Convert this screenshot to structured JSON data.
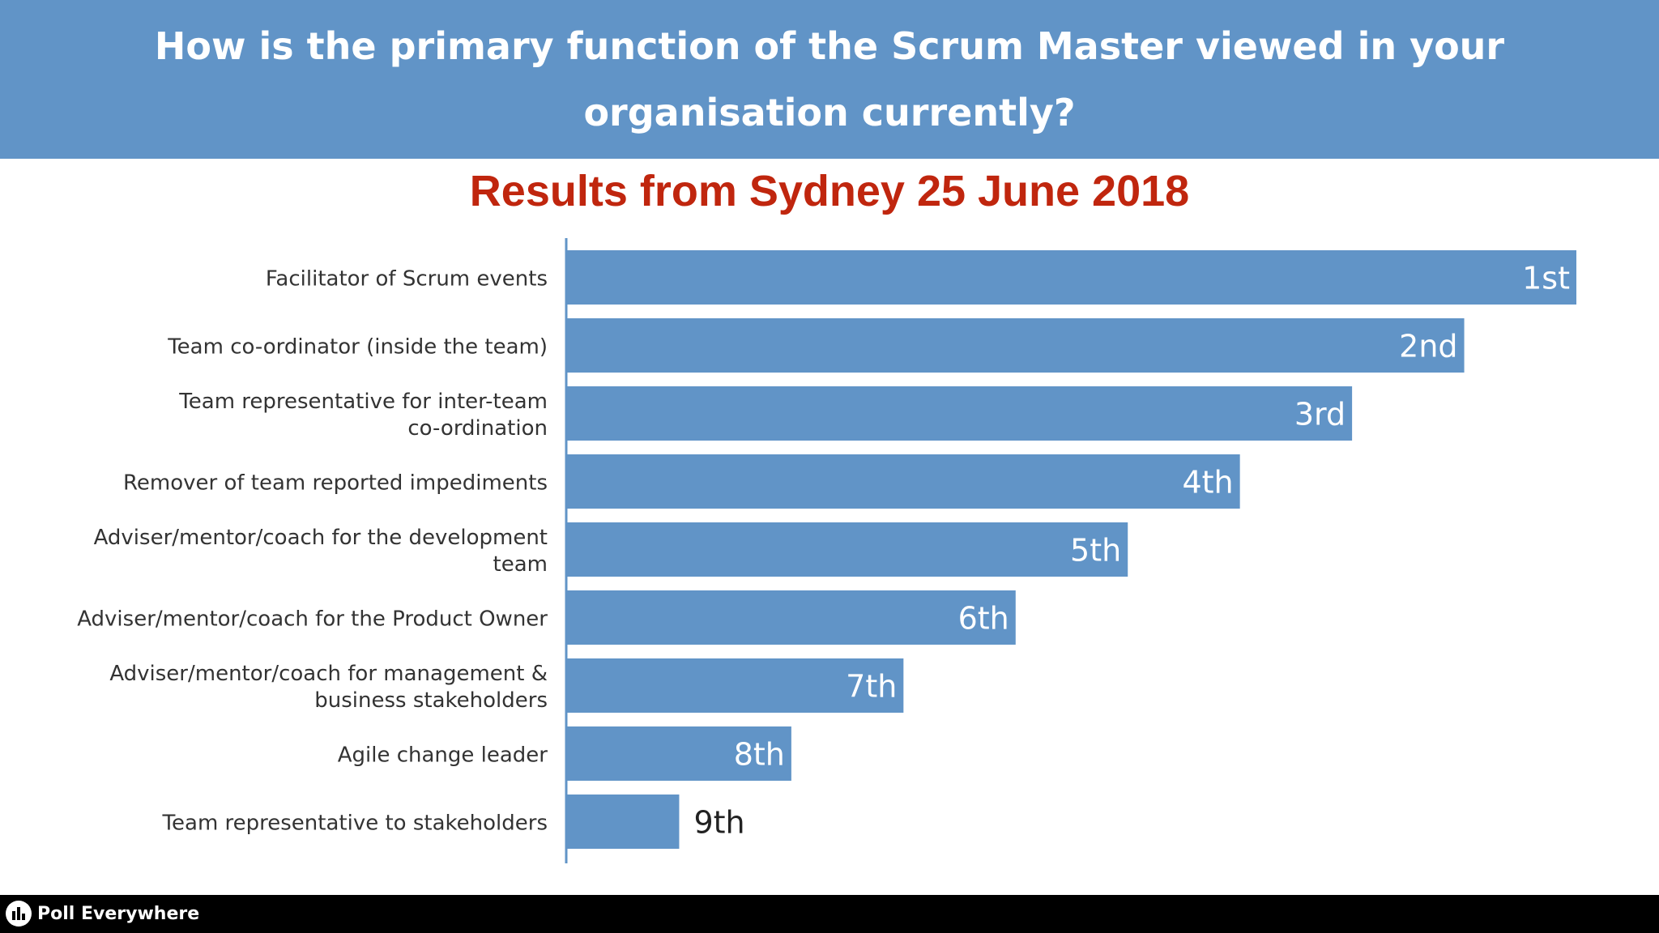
{
  "header": {
    "question": "How is the primary function of the Scrum Master viewed in your organisation currently?"
  },
  "subtitle": "Results from Sydney 25 June 2018",
  "footer": {
    "brand": "Poll Everywhere"
  },
  "colors": {
    "header_bg": "#6194c7",
    "bar": "#6194c7",
    "subtitle": "#c0260e",
    "footer_bg": "#000000"
  },
  "chart_data": {
    "type": "bar",
    "orientation": "horizontal",
    "title": "How is the primary function of the Scrum Master viewed in your organisation currently?",
    "subtitle": "Results from Sydney 25 June 2018",
    "categories": [
      [
        "Facilitator of Scrum events"
      ],
      [
        "Team co-ordinator (inside the team)"
      ],
      [
        "Team representative for inter-team",
        "co-ordination"
      ],
      [
        "Remover of team reported impediments"
      ],
      [
        "Adviser/mentor/coach for the development",
        "team"
      ],
      [
        "Adviser/mentor/coach for the Product Owner"
      ],
      [
        "Adviser/mentor/coach for management &",
        "business stakeholders"
      ],
      [
        "Agile change leader"
      ],
      [
        "Team representative to stakeholders"
      ]
    ],
    "values": [
      9,
      8,
      7,
      6,
      5,
      4,
      3,
      2,
      1
    ],
    "data_labels": [
      "1st",
      "2nd",
      "3rd",
      "4th",
      "5th",
      "6th",
      "7th",
      "8th",
      "9th"
    ],
    "xlim": [
      0,
      9
    ],
    "grid": false,
    "legend": "none"
  }
}
